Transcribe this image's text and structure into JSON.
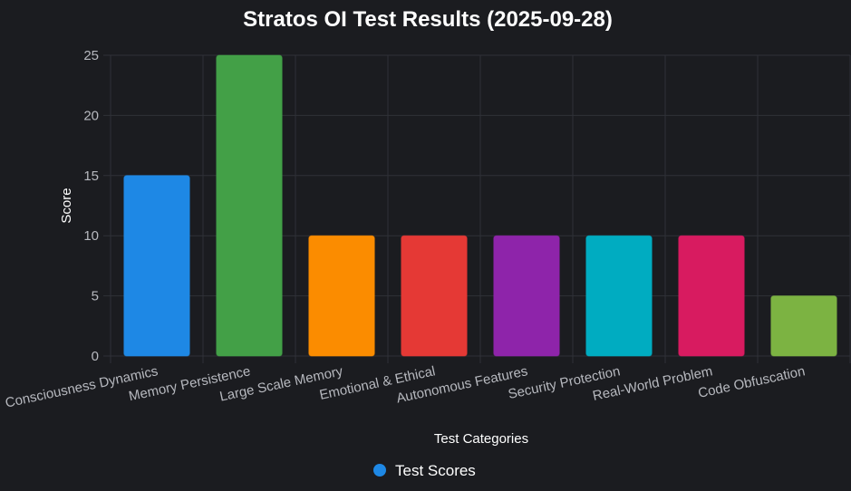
{
  "chart_data": {
    "type": "bar",
    "title": "Stratos OI Test Results (2025-09-28)",
    "xlabel": "Test Categories",
    "ylabel": "Score",
    "categories": [
      "Consciousness Dynamics",
      "Memory Persistence",
      "Large Scale Memory",
      "Emotional & Ethical",
      "Autonomous Features",
      "Security Protection",
      "Real-World Problem",
      "Code Obfuscation"
    ],
    "series": [
      {
        "name": "Test Scores",
        "values": [
          15,
          25,
          10,
          10,
          10,
          10,
          10,
          5
        ]
      }
    ],
    "bar_colors": [
      "#1e88e5",
      "#43a047",
      "#fb8c00",
      "#e53935",
      "#8e24aa",
      "#00acc1",
      "#d81b60",
      "#7cb342"
    ],
    "ylim": [
      0,
      25
    ],
    "yticks": [
      0,
      5,
      10,
      15,
      20,
      25
    ],
    "grid": true,
    "legend_position": "bottom",
    "legend_color": "#1e88e5",
    "colors": {
      "background": "#1b1c20",
      "grid": "#2f3137",
      "title": "#ffffff",
      "tick_text": "#b7b9bf"
    }
  }
}
